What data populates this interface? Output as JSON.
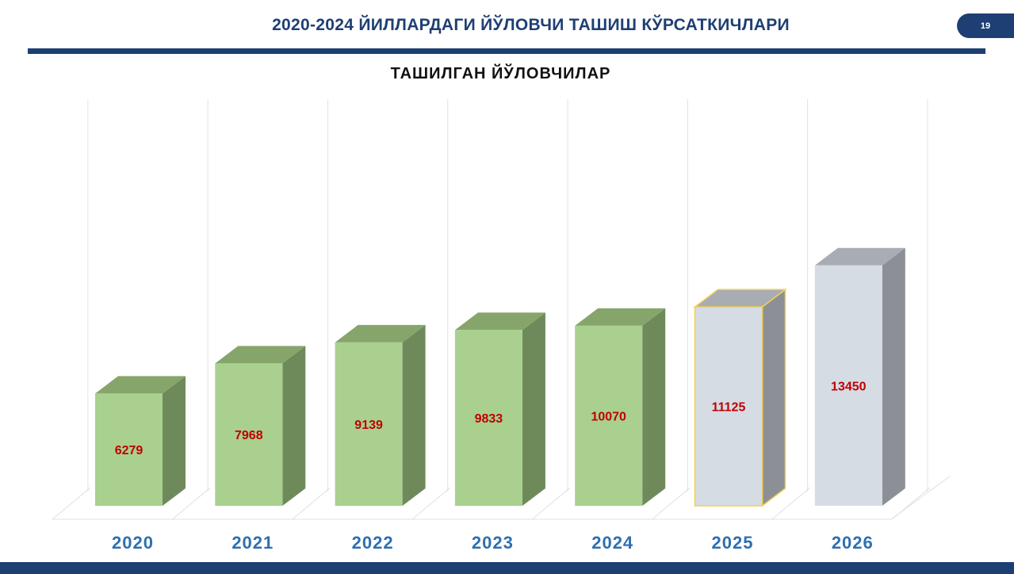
{
  "header": {
    "title": "2020-2024 ЙИЛЛАРДАГИ ЙЎЛОВЧИ ТАШИШ КЎРСАТКИЧЛАРИ",
    "page_number": "19"
  },
  "colors": {
    "brand_navy": "#1e3f73",
    "actual_front": "#a9d08e",
    "actual_side": "#6e8a5a",
    "actual_top": "#86a56b",
    "forecast_front": "#d6dce4",
    "forecast_side": "#8c9096",
    "forecast_top": "#a8acb3",
    "forecast_2025_outline": "#f2cf5b",
    "value_text": "#c00000",
    "category_text": "#2e6fb0"
  },
  "chart_data": {
    "type": "bar",
    "title": "ТАШИЛГАН ЙЎЛОВЧИЛАР",
    "categories": [
      "2020",
      "2021",
      "2022",
      "2023",
      "2024",
      "2025",
      "2026"
    ],
    "values": [
      6279,
      7968,
      9139,
      9833,
      10070,
      11125,
      13450
    ],
    "value_labels": [
      "6279",
      "7968",
      "9139",
      "9833",
      "10070",
      "11125",
      "13450"
    ],
    "bar_style": [
      "actual",
      "actual",
      "actual",
      "actual",
      "actual",
      "forecast",
      "forecast"
    ],
    "highlighted": [
      false,
      false,
      false,
      false,
      false,
      true,
      false
    ],
    "xlabel": "",
    "ylabel": "",
    "ylim": [
      0,
      15000
    ],
    "grid": true,
    "three_d": true
  }
}
